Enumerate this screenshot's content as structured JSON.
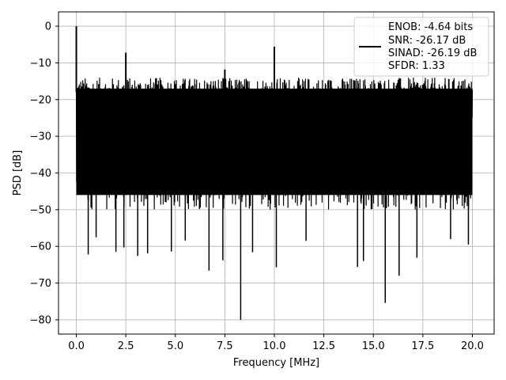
{
  "chart_data": {
    "type": "line",
    "title": "",
    "xlabel": "Frequency [MHz]",
    "ylabel": "PSD [dB]",
    "xlim": [
      -0.9,
      21.1
    ],
    "ylim": [
      -83.9,
      3.9
    ],
    "xticks": [
      0.0,
      2.5,
      5.0,
      7.5,
      10.0,
      12.5,
      15.0,
      17.5,
      20.0
    ],
    "xtick_labels": [
      "0.0",
      "2.5",
      "5.0",
      "7.5",
      "10.0",
      "12.5",
      "15.0",
      "17.5",
      "20.0"
    ],
    "yticks": [
      0,
      -10,
      -20,
      -30,
      -40,
      -50,
      -60,
      -70,
      -80
    ],
    "ytick_labels": [
      "0",
      "−10",
      "−20",
      "−30",
      "−40",
      "−50",
      "−60",
      "−70",
      "−80"
    ],
    "grid": true,
    "line_color": "#000000",
    "noise": {
      "x_start": 0.0,
      "x_end": 20.0,
      "upper_min": -23,
      "upper_max": -14,
      "typical_min": -50,
      "typical_max": -15
    },
    "peaks": [
      {
        "x": 0.0,
        "y": 0.0
      },
      {
        "x": 2.5,
        "y": -7.2
      },
      {
        "x": 7.5,
        "y": -11.8
      },
      {
        "x": 10.0,
        "y": -5.6
      }
    ],
    "dips": [
      {
        "x": 0.6,
        "y": -62.2
      },
      {
        "x": 1.0,
        "y": -57.5
      },
      {
        "x": 2.0,
        "y": -61.5
      },
      {
        "x": 2.4,
        "y": -60.3
      },
      {
        "x": 3.1,
        "y": -62.6
      },
      {
        "x": 3.6,
        "y": -61.9
      },
      {
        "x": 4.8,
        "y": -61.4
      },
      {
        "x": 5.5,
        "y": -58.4
      },
      {
        "x": 6.7,
        "y": -66.6
      },
      {
        "x": 7.4,
        "y": -63.8
      },
      {
        "x": 8.3,
        "y": -80.0
      },
      {
        "x": 8.9,
        "y": -61.6
      },
      {
        "x": 10.1,
        "y": -65.7
      },
      {
        "x": 11.6,
        "y": -58.5
      },
      {
        "x": 14.2,
        "y": -65.6
      },
      {
        "x": 14.5,
        "y": -64.0
      },
      {
        "x": 15.6,
        "y": -75.4
      },
      {
        "x": 16.3,
        "y": -68.0
      },
      {
        "x": 17.2,
        "y": -63.1
      },
      {
        "x": 18.9,
        "y": -58.0
      },
      {
        "x": 19.8,
        "y": -59.5
      }
    ],
    "legend": {
      "placement": "top-right",
      "entries": [
        "ENOB: -4.64 bits",
        "SNR: -26.17 dB",
        "SINAD: -26.19 dB",
        "SFDR: 1.33"
      ]
    }
  }
}
